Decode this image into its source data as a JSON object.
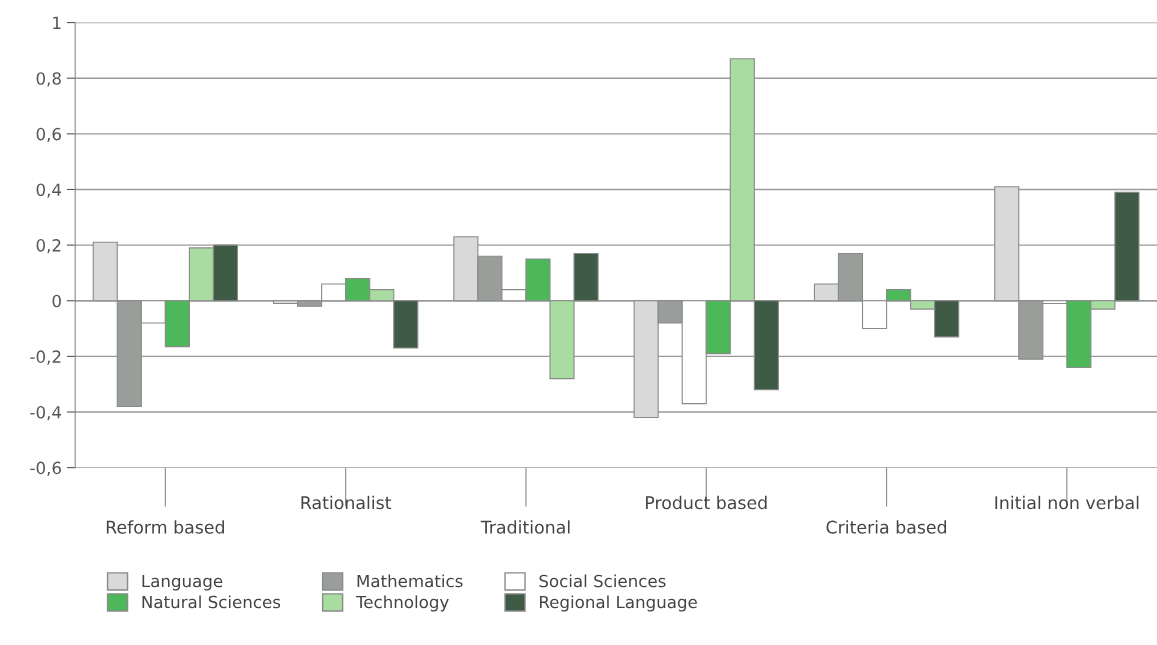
{
  "chart_data": {
    "type": "bar",
    "categories": [
      "Reform based",
      "Rationalist",
      "Traditional",
      "Product based",
      "Criteria based",
      "Initial non verbal"
    ],
    "series": [
      {
        "name": "Language",
        "color": "#d9d9d9",
        "values": [
          0.21,
          -0.01,
          0.23,
          -0.42,
          0.06,
          0.41
        ]
      },
      {
        "name": "Mathematics",
        "color": "#9a9e9a",
        "values": [
          -0.38,
          -0.02,
          0.16,
          -0.08,
          0.17,
          -0.21
        ]
      },
      {
        "name": "Social Sciences",
        "color": "#ffffff",
        "values": [
          -0.08,
          0.06,
          0.04,
          -0.37,
          -0.1,
          -0.01
        ]
      },
      {
        "name": "Natural Sciences",
        "color": "#4cb85a",
        "values": [
          -0.165,
          0.08,
          0.15,
          -0.19,
          0.04,
          -0.24
        ]
      },
      {
        "name": "Technology",
        "color": "#a8dca0",
        "values": [
          0.19,
          0.04,
          -0.28,
          0.87,
          -0.03,
          -0.03
        ]
      },
      {
        "name": "Regional Language",
        "color": "#3f5a45",
        "values": [
          0.2,
          -0.17,
          0.17,
          -0.32,
          -0.13,
          0.39
        ]
      }
    ],
    "ylim": [
      -0.6,
      1
    ],
    "yticks": [
      {
        "value": -0.6,
        "label": "-0,6"
      },
      {
        "value": -0.4,
        "label": "-0,4"
      },
      {
        "value": -0.2,
        "label": "-0,2"
      },
      {
        "value": 0,
        "label": "0"
      },
      {
        "value": 0.2,
        "label": "0,2"
      },
      {
        "value": 0.4,
        "label": "0,4"
      },
      {
        "value": 0.6,
        "label": "0,6"
      },
      {
        "value": 0.8,
        "label": "0,8"
      },
      {
        "value": 1,
        "label": "1"
      }
    ],
    "grid": "y",
    "legend": "bottom"
  }
}
